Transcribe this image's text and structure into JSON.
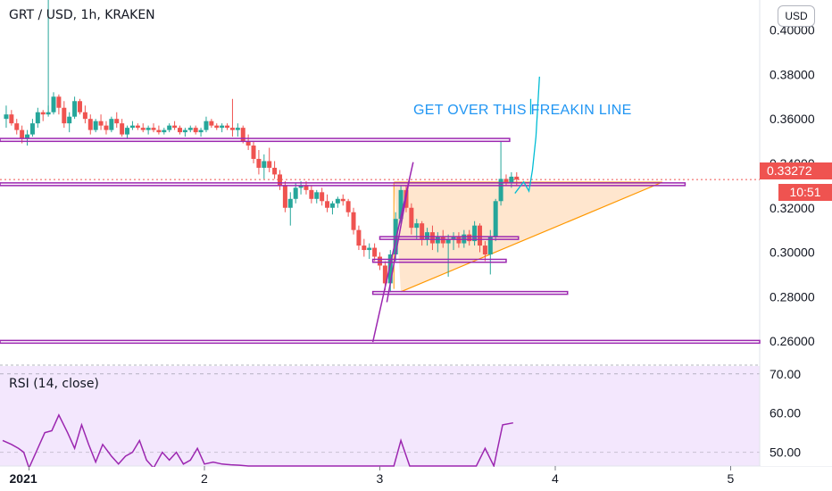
{
  "header": {
    "title": "GRT / USD, 1h, KRAKEN",
    "currency_button": "USD"
  },
  "price_tag": "0.33272",
  "time_tag": "10:51",
  "annotation": "GET OVER THIS FREAKIN LINE",
  "rsi": {
    "label": "RSI (14, close)"
  },
  "colors": {
    "up": "#26a69a",
    "down": "#ef5350",
    "drawing": "#9c27b0",
    "triangle_line": "#ff9800",
    "triangle_fill": "#ffe0c2",
    "rsi_fill": "#f3e7fd",
    "text_blue": "#2196f3"
  },
  "chart_data": [
    {
      "type": "candlestick",
      "title": "GRT / USD, 1h, KRAKEN",
      "ylim": [
        0.2496,
        0.4135
      ],
      "y_ticks": [
        "0.40000",
        "0.38000",
        "0.36000",
        "0.34000",
        "0.32000",
        "0.30000",
        "0.28000",
        "0.26000"
      ],
      "x_ticks": [
        "2021",
        "2",
        "3",
        "4",
        "5"
      ],
      "x_range": [
        0.85,
        5.2
      ],
      "grid": false,
      "current_price": 0.33272,
      "candles": [
        [
          0.87,
          0.36,
          0.366,
          0.356,
          0.362
        ],
        [
          0.9,
          0.362,
          0.364,
          0.357,
          0.358
        ],
        [
          0.93,
          0.358,
          0.36,
          0.353,
          0.355
        ],
        [
          0.96,
          0.355,
          0.357,
          0.349,
          0.351
        ],
        [
          0.99,
          0.351,
          0.355,
          0.348,
          0.353
        ],
        [
          1.02,
          0.353,
          0.36,
          0.352,
          0.358
        ],
        [
          1.05,
          0.358,
          0.365,
          0.356,
          0.363
        ],
        [
          1.08,
          0.363,
          0.364,
          0.359,
          0.362
        ],
        [
          1.11,
          0.362,
          0.366,
          0.361,
          0.363
        ],
        [
          1.14,
          0.363,
          0.372,
          0.362,
          0.37
        ],
        [
          1.17,
          0.37,
          0.371,
          0.362,
          0.365
        ],
        [
          1.2,
          0.365,
          0.368,
          0.356,
          0.358
        ],
        [
          1.23,
          0.358,
          0.363,
          0.354,
          0.361
        ],
        [
          1.26,
          0.361,
          0.37,
          0.36,
          0.368
        ],
        [
          1.29,
          0.368,
          0.369,
          0.362,
          0.363
        ],
        [
          1.32,
          0.363,
          0.366,
          0.358,
          0.36
        ],
        [
          1.35,
          0.36,
          0.362,
          0.353,
          0.355
        ],
        [
          1.38,
          0.355,
          0.36,
          0.354,
          0.359
        ],
        [
          1.41,
          0.359,
          0.362,
          0.355,
          0.357
        ],
        [
          1.44,
          0.357,
          0.359,
          0.353,
          0.355
        ],
        [
          1.47,
          0.355,
          0.361,
          0.354,
          0.36
        ],
        [
          1.5,
          0.36,
          0.363,
          0.356,
          0.358
        ],
        [
          1.53,
          0.358,
          0.36,
          0.352,
          0.353
        ],
        [
          1.56,
          0.353,
          0.357,
          0.351,
          0.356
        ],
        [
          1.59,
          0.356,
          0.359,
          0.355,
          0.357
        ],
        [
          1.62,
          0.357,
          0.358,
          0.355,
          0.356
        ],
        [
          1.65,
          0.356,
          0.358,
          0.354,
          0.355
        ],
        [
          1.68,
          0.355,
          0.357,
          0.353,
          0.356
        ],
        [
          1.71,
          0.356,
          0.358,
          0.354,
          0.355
        ],
        [
          1.74,
          0.355,
          0.357,
          0.353,
          0.354
        ],
        [
          1.77,
          0.354,
          0.356,
          0.353,
          0.355
        ],
        [
          1.8,
          0.355,
          0.358,
          0.354,
          0.357
        ],
        [
          1.83,
          0.357,
          0.359,
          0.355,
          0.356
        ],
        [
          1.86,
          0.356,
          0.357,
          0.353,
          0.354
        ],
        [
          1.89,
          0.354,
          0.356,
          0.352,
          0.355
        ],
        [
          1.92,
          0.355,
          0.357,
          0.354,
          0.356
        ],
        [
          1.95,
          0.356,
          0.357,
          0.353,
          0.354
        ],
        [
          1.98,
          0.354,
          0.356,
          0.352,
          0.355
        ],
        [
          2.01,
          0.355,
          0.361,
          0.354,
          0.359
        ],
        [
          2.04,
          0.359,
          0.36,
          0.356,
          0.357
        ],
        [
          2.07,
          0.357,
          0.358,
          0.355,
          0.356
        ],
        [
          2.1,
          0.356,
          0.358,
          0.354,
          0.357
        ],
        [
          2.13,
          0.357,
          0.358,
          0.355,
          0.356
        ],
        [
          2.16,
          0.356,
          0.369,
          0.352,
          0.355
        ],
        [
          2.19,
          0.355,
          0.358,
          0.352,
          0.356
        ],
        [
          2.22,
          0.356,
          0.357,
          0.349,
          0.35
        ],
        [
          2.25,
          0.35,
          0.353,
          0.346,
          0.348
        ],
        [
          2.28,
          0.348,
          0.35,
          0.34,
          0.342
        ],
        [
          2.31,
          0.342,
          0.346,
          0.335,
          0.338
        ],
        [
          2.34,
          0.338,
          0.344,
          0.333,
          0.341
        ],
        [
          2.37,
          0.341,
          0.347,
          0.336,
          0.338
        ],
        [
          2.4,
          0.338,
          0.341,
          0.333,
          0.335
        ],
        [
          2.43,
          0.335,
          0.337,
          0.328,
          0.33
        ],
        [
          2.46,
          0.33,
          0.332,
          0.318,
          0.32
        ],
        [
          2.49,
          0.32,
          0.327,
          0.312,
          0.324
        ],
        [
          2.52,
          0.324,
          0.331,
          0.322,
          0.329
        ],
        [
          2.55,
          0.329,
          0.332,
          0.326,
          0.33
        ],
        [
          2.58,
          0.33,
          0.332,
          0.326,
          0.328
        ],
        [
          2.61,
          0.328,
          0.33,
          0.322,
          0.324
        ],
        [
          2.64,
          0.324,
          0.328,
          0.322,
          0.327
        ],
        [
          2.67,
          0.327,
          0.329,
          0.321,
          0.323
        ],
        [
          2.7,
          0.323,
          0.326,
          0.318,
          0.32
        ],
        [
          2.73,
          0.32,
          0.323,
          0.317,
          0.322
        ],
        [
          2.76,
          0.322,
          0.325,
          0.32,
          0.324
        ],
        [
          2.79,
          0.324,
          0.326,
          0.321,
          0.323
        ],
        [
          2.82,
          0.323,
          0.324,
          0.316,
          0.318
        ],
        [
          2.85,
          0.318,
          0.32,
          0.308,
          0.31
        ],
        [
          2.88,
          0.31,
          0.312,
          0.301,
          0.303
        ],
        [
          2.91,
          0.303,
          0.306,
          0.298,
          0.301
        ],
        [
          2.94,
          0.301,
          0.304,
          0.297,
          0.302
        ],
        [
          2.97,
          0.302,
          0.304,
          0.296,
          0.298
        ],
        [
          3.0,
          0.298,
          0.3,
          0.292,
          0.294
        ],
        [
          3.03,
          0.294,
          0.296,
          0.283,
          0.286
        ],
        [
          3.06,
          0.286,
          0.301,
          0.282,
          0.299
        ],
        [
          3.09,
          0.299,
          0.318,
          0.296,
          0.315
        ],
        [
          3.12,
          0.315,
          0.33,
          0.312,
          0.328
        ],
        [
          3.15,
          0.328,
          0.33,
          0.318,
          0.32
        ],
        [
          3.18,
          0.32,
          0.322,
          0.308,
          0.311
        ],
        [
          3.21,
          0.311,
          0.315,
          0.306,
          0.313
        ],
        [
          3.24,
          0.313,
          0.314,
          0.303,
          0.306
        ],
        [
          3.27,
          0.306,
          0.311,
          0.303,
          0.309
        ],
        [
          3.3,
          0.309,
          0.312,
          0.301,
          0.304
        ],
        [
          3.33,
          0.304,
          0.309,
          0.3,
          0.307
        ],
        [
          3.36,
          0.307,
          0.31,
          0.302,
          0.304
        ],
        [
          3.39,
          0.304,
          0.308,
          0.289,
          0.306
        ],
        [
          3.42,
          0.306,
          0.309,
          0.301,
          0.307
        ],
        [
          3.45,
          0.307,
          0.309,
          0.302,
          0.304
        ],
        [
          3.48,
          0.304,
          0.31,
          0.302,
          0.308
        ],
        [
          3.51,
          0.308,
          0.31,
          0.303,
          0.305
        ],
        [
          3.54,
          0.305,
          0.314,
          0.303,
          0.312
        ],
        [
          3.57,
          0.312,
          0.313,
          0.3,
          0.303
        ],
        [
          3.6,
          0.303,
          0.305,
          0.296,
          0.299
        ],
        [
          3.63,
          0.299,
          0.31,
          0.29,
          0.307
        ],
        [
          3.66,
          0.307,
          0.324,
          0.305,
          0.323
        ],
        [
          3.69,
          0.323,
          0.35,
          0.321,
          0.333
        ],
        [
          3.72,
          0.333,
          0.335,
          0.33,
          0.331
        ],
        [
          3.75,
          0.331,
          0.336,
          0.329,
          0.334
        ],
        [
          3.78,
          0.334,
          0.336,
          0.33,
          0.3327
        ]
      ]
    },
    {
      "type": "line",
      "title": "RSI (14, close)",
      "ylim": [
        46.5,
        72.0
      ],
      "y_ticks": [
        "70.00",
        "60.00",
        "50.00"
      ],
      "values": [
        [
          0.85,
          53
        ],
        [
          0.9,
          52
        ],
        [
          0.94,
          51
        ],
        [
          0.97,
          50
        ],
        [
          1.0,
          46
        ],
        [
          1.04,
          50
        ],
        [
          1.09,
          55
        ],
        [
          1.13,
          55.5
        ],
        [
          1.17,
          59.5
        ],
        [
          1.22,
          55
        ],
        [
          1.26,
          51
        ],
        [
          1.3,
          57
        ],
        [
          1.34,
          52
        ],
        [
          1.38,
          47.5
        ],
        [
          1.42,
          52
        ],
        [
          1.47,
          49
        ],
        [
          1.51,
          47
        ],
        [
          1.55,
          49
        ],
        [
          1.59,
          50
        ],
        [
          1.63,
          53
        ],
        [
          1.67,
          48
        ],
        [
          1.71,
          46
        ],
        [
          1.76,
          50
        ],
        [
          1.8,
          48
        ],
        [
          1.84,
          50
        ],
        [
          1.88,
          47
        ],
        [
          1.92,
          48
        ],
        [
          1.96,
          51
        ],
        [
          2.0,
          47
        ],
        [
          2.05,
          47.5
        ],
        [
          2.1,
          47
        ],
        [
          2.15,
          46.8
        ],
        [
          2.2,
          46.7
        ],
        [
          2.25,
          46.5
        ],
        [
          3.08,
          46.5
        ],
        [
          3.12,
          53
        ],
        [
          3.17,
          46.5
        ],
        [
          3.55,
          46.5
        ],
        [
          3.6,
          51
        ],
        [
          3.65,
          46.5
        ],
        [
          3.7,
          57
        ],
        [
          3.76,
          57.5
        ]
      ]
    }
  ]
}
